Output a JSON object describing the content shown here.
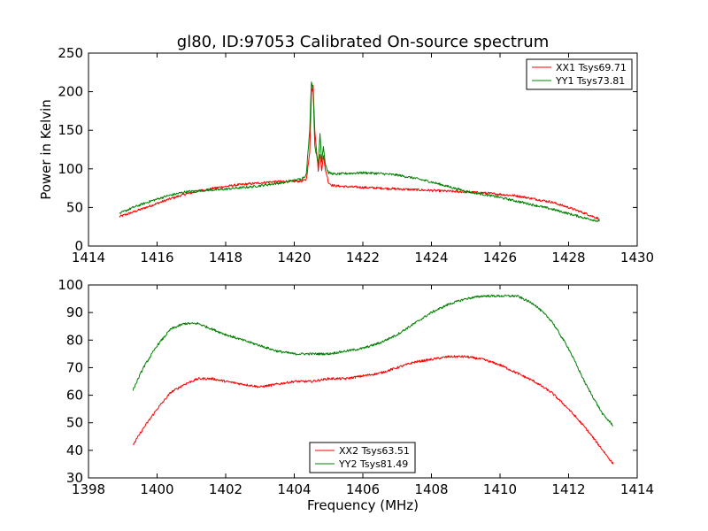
{
  "chart_data": [
    {
      "type": "line",
      "title": "gl80, ID:97053 Calibrated On-source spectrum",
      "xlabel": "",
      "ylabel": "Power in Kelvin",
      "xlim": [
        1414,
        1430
      ],
      "ylim": [
        0,
        250
      ],
      "xticks": [
        "1414",
        "1416",
        "1418",
        "1420",
        "1422",
        "1424",
        "1426",
        "1428",
        "1430"
      ],
      "yticks": [
        "0",
        "50",
        "100",
        "150",
        "200",
        "250"
      ],
      "grid": false,
      "legend_position": "top-right",
      "series": [
        {
          "name": "XX1 Tsys69.71",
          "color": "#ff0000",
          "x": [
            1414.9,
            1415.3,
            1415.8,
            1416.3,
            1416.8,
            1417.3,
            1417.8,
            1418.3,
            1418.8,
            1419.3,
            1419.8,
            1420.2,
            1420.35,
            1420.45,
            1420.5,
            1420.55,
            1420.6,
            1420.7,
            1420.75,
            1420.8,
            1420.85,
            1420.9,
            1420.95,
            1421.0,
            1421.1,
            1421.2,
            1421.5,
            1422.0,
            1422.5,
            1423.0,
            1423.5,
            1424.0,
            1424.5,
            1425.0,
            1425.5,
            1426.0,
            1426.5,
            1427.0,
            1427.5,
            1428.0,
            1428.5,
            1428.9
          ],
          "y": [
            38,
            44,
            52,
            60,
            67,
            72,
            76,
            79,
            81,
            83,
            84,
            84,
            86,
            120,
            200,
            208,
            150,
            98,
            120,
            98,
            118,
            100,
            92,
            82,
            79,
            78,
            77,
            76,
            75,
            74,
            73,
            72,
            71,
            70,
            69,
            67,
            65,
            61,
            57,
            50,
            42,
            35
          ]
        },
        {
          "name": "YY1 Tsys73.81",
          "color": "#008000",
          "x": [
            1414.9,
            1415.3,
            1415.8,
            1416.3,
            1416.8,
            1417.3,
            1417.8,
            1418.3,
            1418.8,
            1419.3,
            1419.8,
            1420.2,
            1420.35,
            1420.45,
            1420.5,
            1420.55,
            1420.6,
            1420.7,
            1420.75,
            1420.8,
            1420.85,
            1420.9,
            1420.95,
            1421.0,
            1421.2,
            1421.5,
            1422.0,
            1422.5,
            1423.0,
            1423.5,
            1424.0,
            1424.5,
            1425.0,
            1425.5,
            1426.0,
            1426.5,
            1427.0,
            1427.5,
            1428.0,
            1428.5,
            1428.9
          ],
          "y": [
            42,
            50,
            58,
            65,
            70,
            72,
            73,
            75,
            77,
            80,
            83,
            87,
            92,
            150,
            214,
            200,
            130,
            105,
            146,
            110,
            130,
            108,
            100,
            95,
            93,
            94,
            95,
            94,
            92,
            88,
            83,
            77,
            71,
            67,
            63,
            58,
            53,
            48,
            42,
            36,
            32
          ]
        }
      ]
    },
    {
      "type": "line",
      "title": "",
      "xlabel": "Frequency (MHz)",
      "ylabel": "",
      "xlim": [
        1398,
        1414
      ],
      "ylim": [
        30,
        100
      ],
      "xticks": [
        "1398",
        "1400",
        "1402",
        "1404",
        "1406",
        "1408",
        "1410",
        "1412",
        "1414"
      ],
      "yticks": [
        "30",
        "40",
        "50",
        "60",
        "70",
        "80",
        "90",
        "100"
      ],
      "grid": false,
      "legend_position": "bottom-center",
      "series": [
        {
          "name": "XX2 Tsys63.51",
          "color": "#ff0000",
          "x": [
            1399.3,
            1399.6,
            1400.0,
            1400.4,
            1400.8,
            1401.2,
            1401.6,
            1402.0,
            1402.5,
            1403.0,
            1403.5,
            1404.0,
            1404.5,
            1405.0,
            1405.5,
            1406.0,
            1406.5,
            1407.0,
            1407.5,
            1408.0,
            1408.5,
            1409.0,
            1409.5,
            1410.0,
            1410.5,
            1411.0,
            1411.5,
            1412.0,
            1412.5,
            1413.0,
            1413.3
          ],
          "y": [
            42,
            48,
            55,
            61,
            64,
            66,
            66,
            65,
            64,
            63,
            64,
            65,
            65,
            66,
            66,
            67,
            68,
            70,
            72,
            73,
            74,
            74,
            73,
            71,
            68,
            65,
            61,
            55,
            48,
            40,
            35
          ]
        },
        {
          "name": "YY2 Tsys81.49",
          "color": "#008000",
          "x": [
            1399.3,
            1399.6,
            1400.0,
            1400.4,
            1400.8,
            1401.2,
            1401.6,
            1402.0,
            1402.5,
            1403.0,
            1403.5,
            1404.0,
            1404.5,
            1405.0,
            1405.5,
            1406.0,
            1406.5,
            1407.0,
            1407.5,
            1408.0,
            1408.5,
            1409.0,
            1409.5,
            1410.0,
            1410.5,
            1411.0,
            1411.5,
            1412.0,
            1412.5,
            1413.0,
            1413.3
          ],
          "y": [
            62,
            70,
            78,
            84,
            86,
            86,
            84,
            82,
            80,
            78,
            76,
            75,
            75,
            75,
            76,
            77,
            79,
            82,
            86,
            90,
            93,
            95,
            96,
            96,
            96,
            93,
            87,
            77,
            64,
            53,
            49
          ]
        }
      ]
    }
  ]
}
